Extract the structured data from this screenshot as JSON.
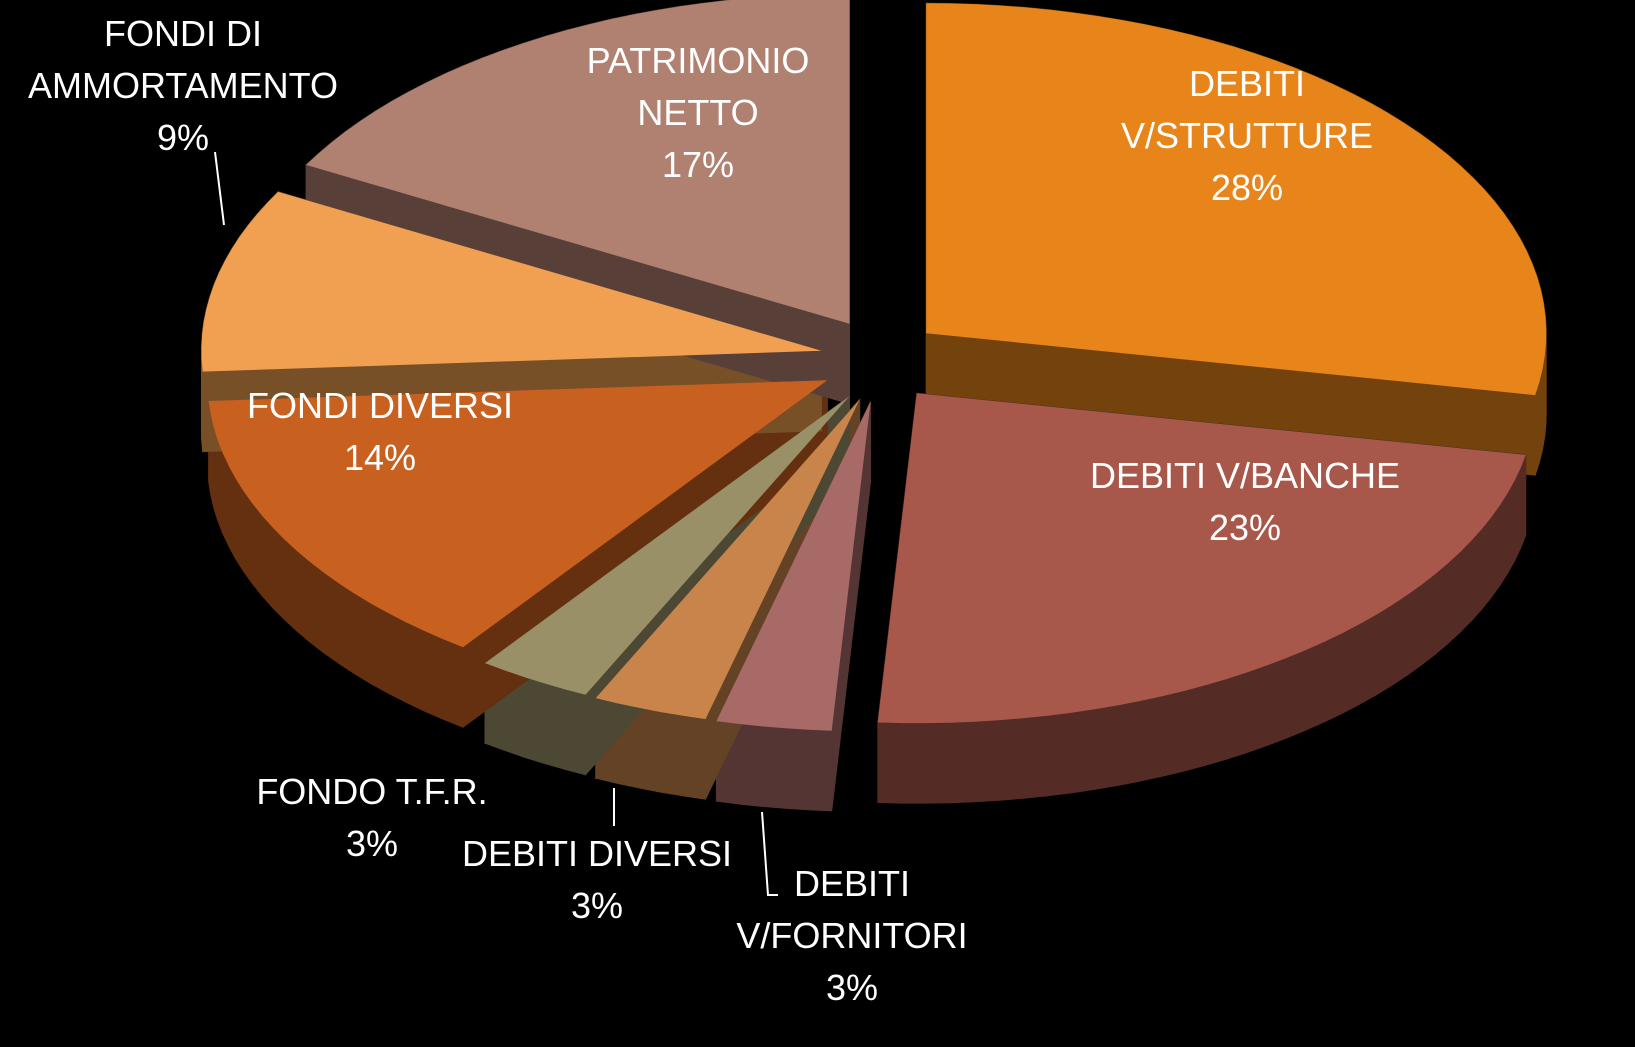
{
  "chart_data": {
    "type": "pie",
    "categories": [
      "DEBITI V/STRUTTURE",
      "DEBITI V/BANCHE",
      "DEBITI V/FORNITORI",
      "DEBITI DIVERSI",
      "FONDO T.F.R.",
      "FONDI DIVERSI",
      "FONDI DI AMMORTAMENTO",
      "PATRIMONIO NETTO"
    ],
    "values": [
      28,
      23,
      3,
      3,
      3,
      14,
      9,
      17
    ],
    "value_labels": [
      "28%",
      "23%",
      "3%",
      "3%",
      "3%",
      "14%",
      "9%",
      "17%"
    ],
    "colors": [
      "#e8851a",
      "#a8584a",
      "#a86a66",
      "#c8844a",
      "#9a9068",
      "#c86020",
      "#f0a050",
      "#b08070"
    ]
  }
}
